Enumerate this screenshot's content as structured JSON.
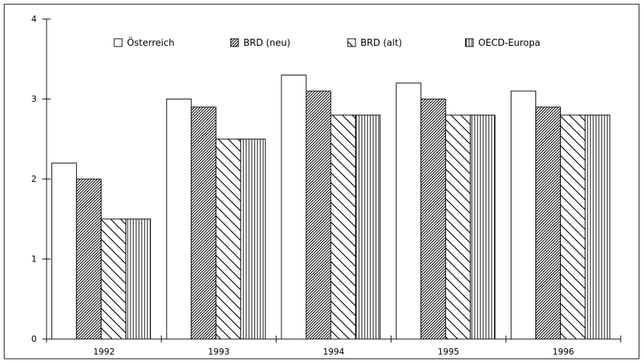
{
  "chart_data": {
    "type": "bar",
    "title": "",
    "xlabel": "",
    "ylabel": "",
    "categories": [
      "1992",
      "1993",
      "1994",
      "1995",
      "1996"
    ],
    "ylim": [
      0,
      4
    ],
    "yticks": [
      0,
      1,
      2,
      3,
      4
    ],
    "grid": false,
    "legend_position": "top",
    "series": [
      {
        "name": "Österreich",
        "pattern": "solid-white",
        "values": [
          2.2,
          3.0,
          3.3,
          3.2,
          3.1
        ]
      },
      {
        "name": "BRD (neu)",
        "pattern": "dense-diagonal",
        "values": [
          2.0,
          2.9,
          3.1,
          3.0,
          2.9
        ]
      },
      {
        "name": "BRD (alt)",
        "pattern": "wide-diagonal",
        "values": [
          1.5,
          2.5,
          2.8,
          2.8,
          2.8
        ]
      },
      {
        "name": "OECD-Europa",
        "pattern": "vertical-lines",
        "values": [
          1.5,
          2.5,
          2.8,
          2.8,
          2.8
        ]
      }
    ],
    "colors": {
      "stroke": "#000000",
      "fill": "#ffffff"
    }
  }
}
